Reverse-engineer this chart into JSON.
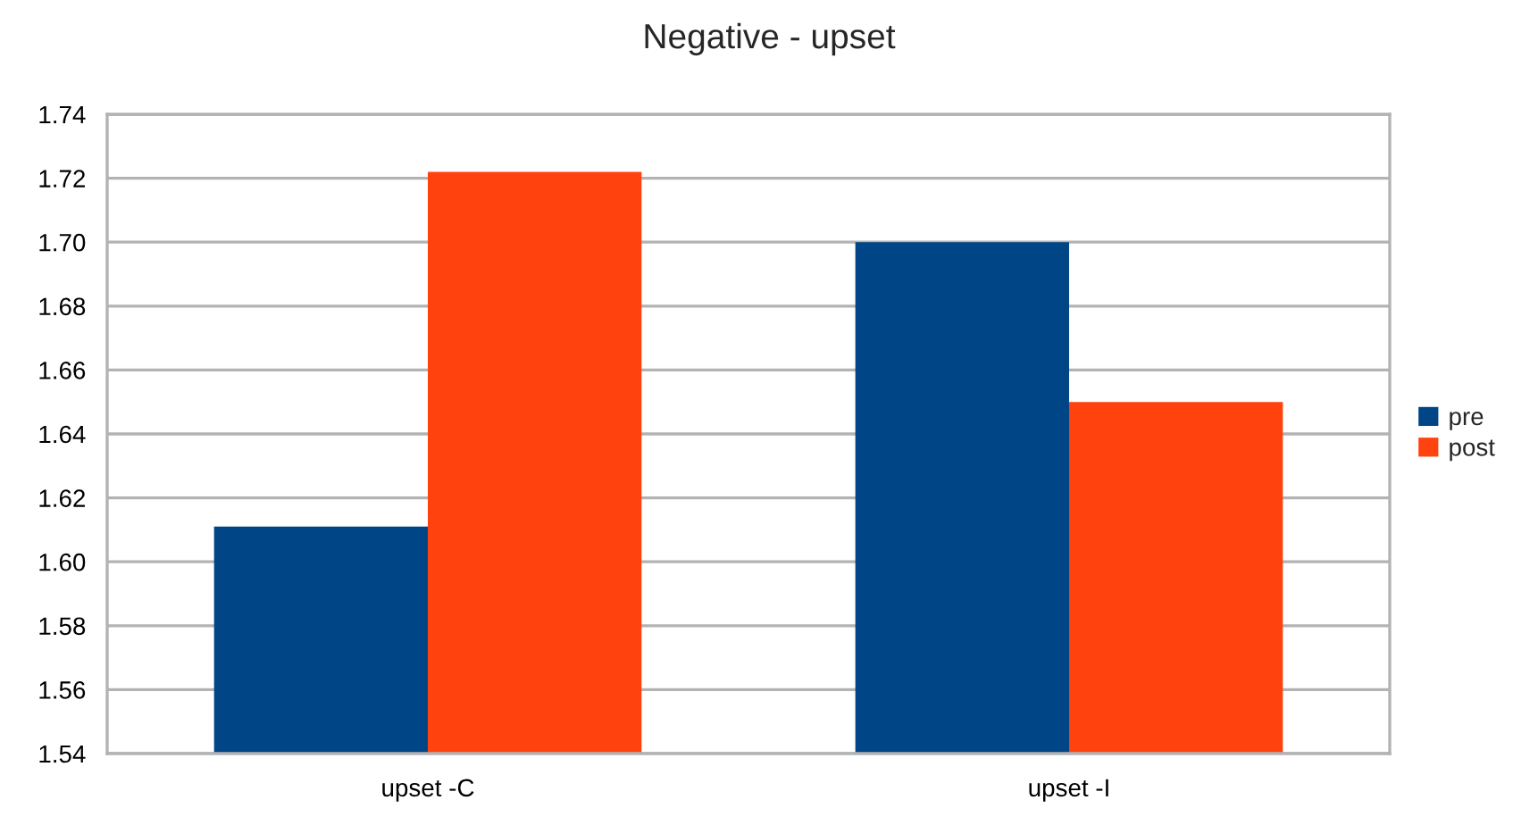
{
  "chart_data": {
    "type": "bar",
    "title": "Negative - upset",
    "categories": [
      "upset -C",
      "upset -I"
    ],
    "series": [
      {
        "name": "pre",
        "color": "#004586",
        "values": [
          1.611,
          1.7
        ]
      },
      {
        "name": "post",
        "color": "#ff420e",
        "values": [
          1.722,
          1.65
        ]
      }
    ],
    "ylim": [
      1.54,
      1.74
    ],
    "yticks": [
      1.54,
      1.56,
      1.58,
      {
        "value": 1.6,
        "label": "1.60"
      },
      1.62,
      1.64,
      1.66,
      1.68,
      {
        "value": 1.7,
        "label": "1.70"
      },
      1.72,
      1.74
    ],
    "grid": "y",
    "legend": "right"
  }
}
